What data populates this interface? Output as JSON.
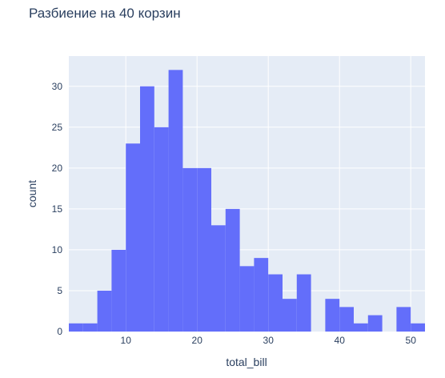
{
  "chart_data": {
    "type": "bar",
    "title": "Разбиение на 40 корзин",
    "xlabel": "total_bill",
    "ylabel": "count",
    "xlim": [
      2,
      52
    ],
    "ylim": [
      0,
      33.7
    ],
    "bin_width": 2,
    "x_ticks": [
      10,
      20,
      30,
      40,
      50
    ],
    "y_ticks": [
      0,
      5,
      10,
      15,
      20,
      25,
      30
    ],
    "bins": [
      {
        "x0": 2,
        "x1": 4,
        "count": 1
      },
      {
        "x0": 4,
        "x1": 6,
        "count": 1
      },
      {
        "x0": 6,
        "x1": 8,
        "count": 5
      },
      {
        "x0": 8,
        "x1": 10,
        "count": 10
      },
      {
        "x0": 10,
        "x1": 12,
        "count": 23
      },
      {
        "x0": 12,
        "x1": 14,
        "count": 30
      },
      {
        "x0": 14,
        "x1": 16,
        "count": 25
      },
      {
        "x0": 16,
        "x1": 18,
        "count": 32
      },
      {
        "x0": 18,
        "x1": 20,
        "count": 20
      },
      {
        "x0": 20,
        "x1": 22,
        "count": 20
      },
      {
        "x0": 22,
        "x1": 24,
        "count": 13
      },
      {
        "x0": 24,
        "x1": 26,
        "count": 15
      },
      {
        "x0": 26,
        "x1": 28,
        "count": 8
      },
      {
        "x0": 28,
        "x1": 30,
        "count": 9
      },
      {
        "x0": 30,
        "x1": 32,
        "count": 7
      },
      {
        "x0": 32,
        "x1": 34,
        "count": 4
      },
      {
        "x0": 34,
        "x1": 36,
        "count": 7
      },
      {
        "x0": 36,
        "x1": 38,
        "count": 0
      },
      {
        "x0": 38,
        "x1": 40,
        "count": 4
      },
      {
        "x0": 40,
        "x1": 42,
        "count": 3
      },
      {
        "x0": 42,
        "x1": 44,
        "count": 1
      },
      {
        "x0": 44,
        "x1": 46,
        "count": 2
      },
      {
        "x0": 46,
        "x1": 48,
        "count": 0
      },
      {
        "x0": 48,
        "x1": 50,
        "count": 3
      },
      {
        "x0": 50,
        "x1": 52,
        "count": 1
      }
    ],
    "grid": true,
    "colors": {
      "bar": "#636efa",
      "plot_background": "#e5ecf6",
      "grid": "#ffffff",
      "text": "#2a3f5f"
    }
  }
}
